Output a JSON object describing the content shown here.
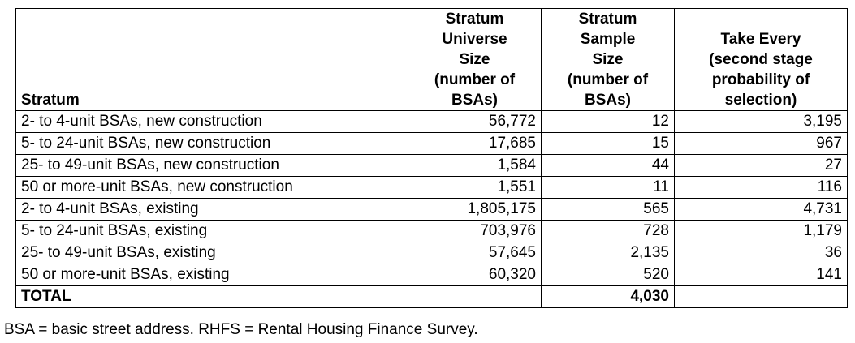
{
  "table": {
    "headers": [
      {
        "lines": [
          "Stratum"
        ]
      },
      {
        "lines": [
          "Stratum",
          "Universe",
          "Size",
          "(number of",
          "BSAs)"
        ]
      },
      {
        "lines": [
          "Stratum",
          "Sample",
          "Size",
          "(number of",
          "BSAs)"
        ]
      },
      {
        "lines": [
          "Take Every",
          "(second stage",
          "probability of",
          "selection)"
        ]
      }
    ],
    "rows": [
      {
        "stratum": "2- to 4-unit BSAs, new construction",
        "universe": "56,772",
        "sample": "12",
        "take_every": "3,195"
      },
      {
        "stratum": "5- to 24-unit BSAs, new construction",
        "universe": "17,685",
        "sample": "15",
        "take_every": "967"
      },
      {
        "stratum": "25- to 49-unit BSAs, new construction",
        "universe": "1,584",
        "sample": "44",
        "take_every": "27"
      },
      {
        "stratum": "50 or more-unit BSAs, new construction",
        "universe": "1,551",
        "sample": "11",
        "take_every": "116"
      },
      {
        "stratum": "2- to 4-unit BSAs, existing",
        "universe": "1,805,175",
        "sample": "565",
        "take_every": "4,731"
      },
      {
        "stratum": "5- to 24-unit BSAs, existing",
        "universe": "703,976",
        "sample": "728",
        "take_every": "1,179"
      },
      {
        "stratum": "25- to 49-unit BSAs, existing",
        "universe": "57,645",
        "sample": "2,135",
        "take_every": "36"
      },
      {
        "stratum": "50 or more-unit BSAs, existing",
        "universe": "60,320",
        "sample": "520",
        "take_every": "141"
      }
    ],
    "total": {
      "label": "TOTAL",
      "universe": "",
      "sample": "4,030",
      "take_every": ""
    }
  },
  "footnote": "BSA = basic street address. RHFS = Rental Housing Finance Survey."
}
